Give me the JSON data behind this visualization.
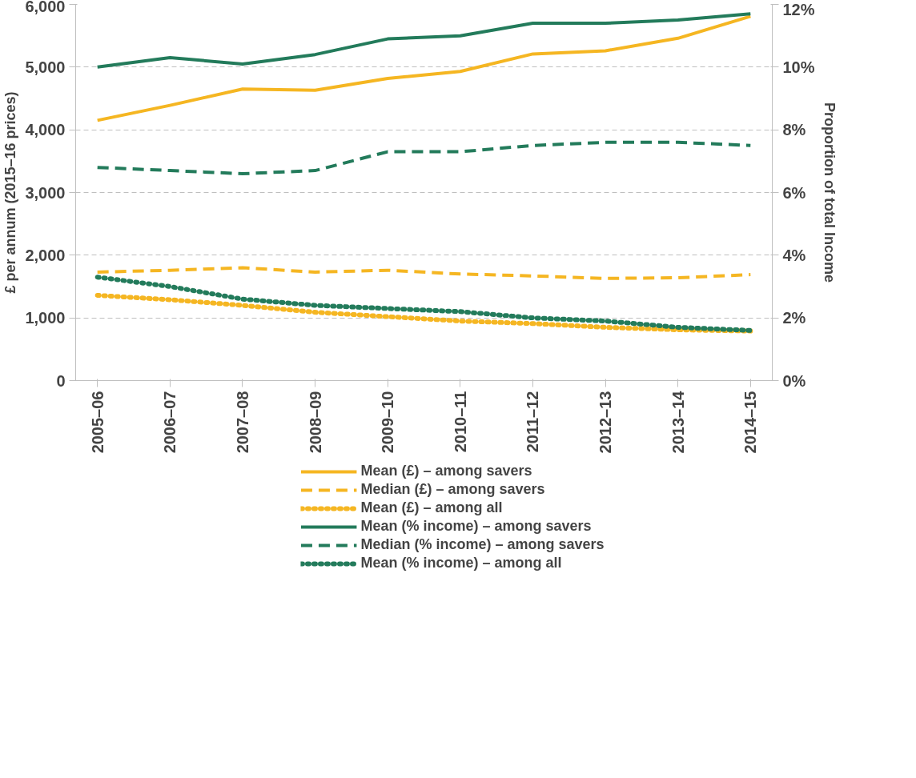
{
  "chart_data": {
    "type": "line",
    "ylabel": "£ per annum (2015–16 prices)",
    "y2label": "Proportion of total Income",
    "categories": [
      "2005–06",
      "2006–07",
      "2007–08",
      "2008–09",
      "2009–10",
      "2010–11",
      "2011–12",
      "2012–13",
      "2013–14",
      "2014–15"
    ],
    "ylim": [
      0,
      6000
    ],
    "yticks": [
      {
        "value": 0,
        "label": "0"
      },
      {
        "value": 1000,
        "label": "1,000"
      },
      {
        "value": 2000,
        "label": "2,000"
      },
      {
        "value": 3000,
        "label": "3,000"
      },
      {
        "value": 4000,
        "label": "4,000"
      },
      {
        "value": 5000,
        "label": "5,000"
      },
      {
        "value": 6000,
        "label": "6,000"
      }
    ],
    "y2lim": [
      0,
      12
    ],
    "y2ticks": [
      {
        "value": 0,
        "label": "0%"
      },
      {
        "value": 2,
        "label": "2%"
      },
      {
        "value": 4,
        "label": "4%"
      },
      {
        "value": 6,
        "label": "6%"
      },
      {
        "value": 8,
        "label": "8%"
      },
      {
        "value": 10,
        "label": "10%"
      },
      {
        "value": 12,
        "label": "12%"
      }
    ],
    "grid": "y",
    "legend": "bottom",
    "series": [
      {
        "name": "Mean (£) – among savers",
        "color": "#f5b622",
        "line_style": "solid",
        "values": [
          4150,
          4390,
          4650,
          4630,
          4820,
          4930,
          5210,
          5260,
          5460,
          5810
        ]
      },
      {
        "name": "Median (£) – among savers",
        "color": "#f5b622",
        "line_style": "dashed",
        "values": [
          1730,
          1760,
          1800,
          1730,
          1760,
          1700,
          1670,
          1630,
          1640,
          1690
        ]
      },
      {
        "name": "Mean (£) – among all",
        "color": "#f5b622",
        "line_style": "dotted",
        "values": [
          1360,
          1290,
          1200,
          1090,
          1020,
          950,
          910,
          850,
          810,
          790
        ]
      },
      {
        "name": "Mean (% income) – among savers",
        "color": "#237b5b",
        "line_style": "solid",
        "axis": "y2",
        "values": [
          10.0,
          10.3,
          10.1,
          10.4,
          10.9,
          11.0,
          11.4,
          11.4,
          11.5,
          11.7
        ]
      },
      {
        "name": "Median (% income) – among savers",
        "color": "#237b5b",
        "line_style": "dashed",
        "axis": "y2",
        "values": [
          6.8,
          6.7,
          6.6,
          6.7,
          7.3,
          7.3,
          7.5,
          7.6,
          7.6,
          7.5
        ]
      },
      {
        "name": "Mean (% income) – among all",
        "color": "#237b5b",
        "line_style": "dotted",
        "axis": "y2",
        "values": [
          3.3,
          3.0,
          2.6,
          2.4,
          2.3,
          2.2,
          2.0,
          1.9,
          1.7,
          1.6
        ]
      }
    ]
  }
}
